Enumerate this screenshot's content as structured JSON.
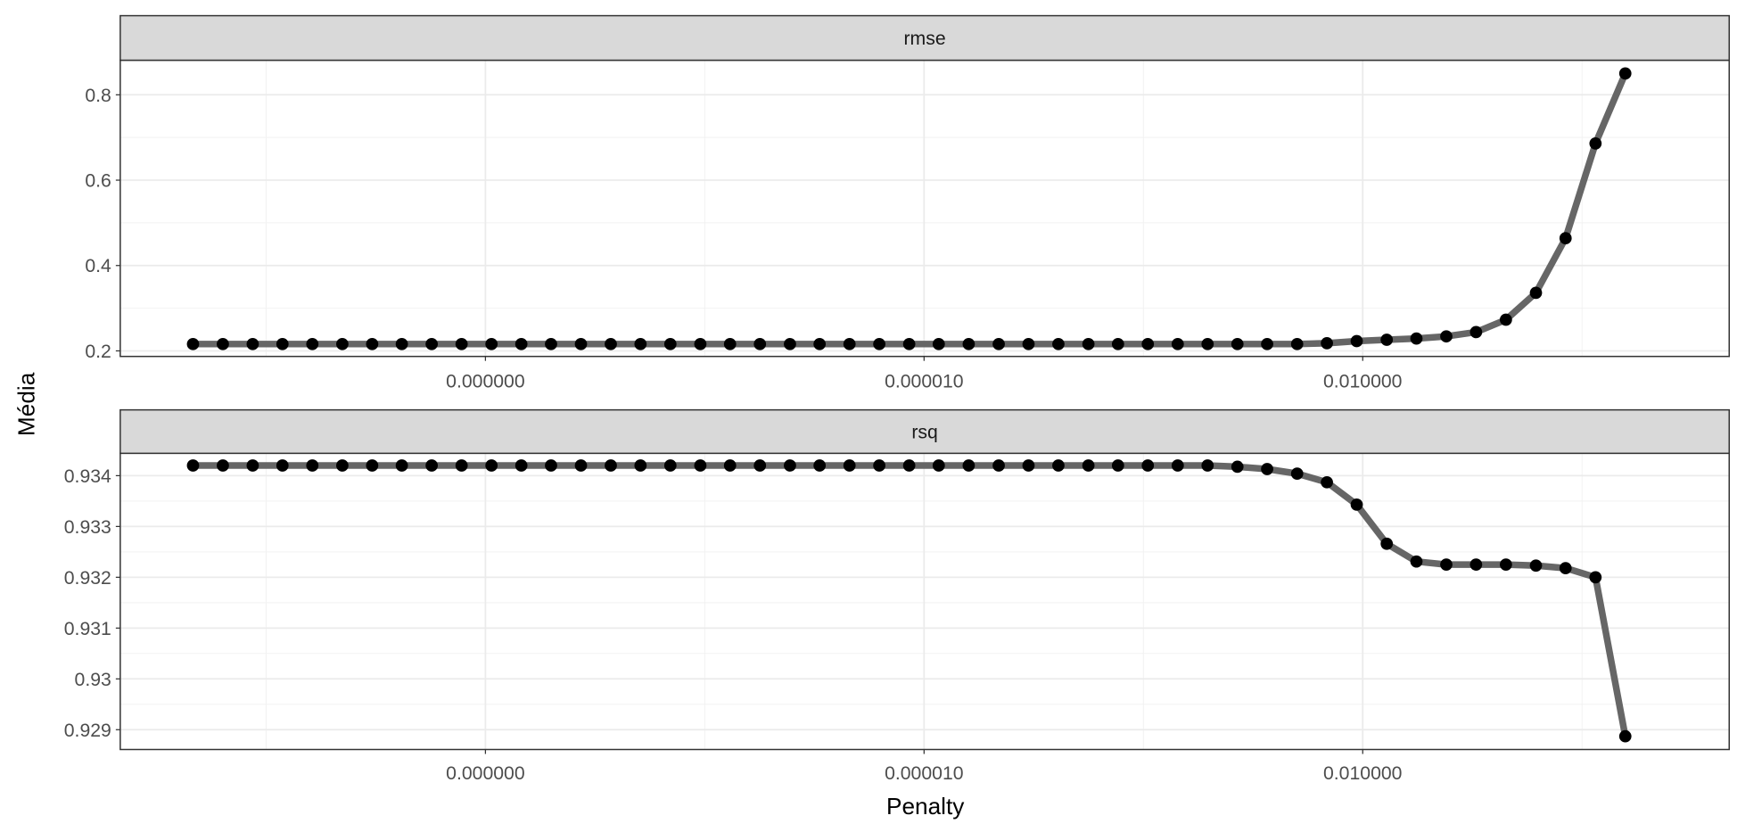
{
  "axis_labels": {
    "x": "Penalty",
    "y": "Média"
  },
  "chart_data": [
    {
      "type": "line",
      "strip": "rmse",
      "log_x": true,
      "grid": true,
      "line_color": "#666666",
      "point_color": "#000000",
      "x": [
        1e-10,
        1.6e-10,
        2.56e-10,
        4.09e-10,
        6.55e-10,
        1.05e-09,
        1.68e-09,
        2.68e-09,
        4.29e-09,
        6.87e-09,
        1.1e-08,
        1.76e-08,
        2.81e-08,
        4.5e-08,
        7.2e-08,
        1.15e-07,
        1.84e-07,
        2.95e-07,
        4.71e-07,
        7.54e-07,
        1.21e-06,
        1.93e-06,
        3.09e-06,
        4.94e-06,
        7.91e-06,
        1.26e-05,
        2.02e-05,
        3.24e-05,
        5.18e-05,
        8.29e-05,
        0.000133,
        0.000212,
        0.000339,
        0.000543,
        0.000869,
        0.00139,
        0.00222,
        0.00356,
        0.00569,
        0.0091,
        0.0146,
        0.0233,
        0.0373,
        0.0596,
        0.0954,
        0.153,
        0.244,
        0.391,
        0.625
      ],
      "values": [
        0.216,
        0.216,
        0.216,
        0.216,
        0.216,
        0.216,
        0.216,
        0.216,
        0.216,
        0.216,
        0.216,
        0.216,
        0.216,
        0.216,
        0.216,
        0.216,
        0.216,
        0.216,
        0.216,
        0.216,
        0.216,
        0.216,
        0.216,
        0.216,
        0.216,
        0.216,
        0.216,
        0.216,
        0.216,
        0.216,
        0.216,
        0.216,
        0.216,
        0.216,
        0.216,
        0.216,
        0.216,
        0.216,
        0.218,
        0.223,
        0.226,
        0.229,
        0.234,
        0.244,
        0.273,
        0.336,
        0.464,
        0.686,
        0.85
      ],
      "xlim": [
        3.18e-11,
        3.21
      ],
      "xticks": [
        {
          "value": 1e-08,
          "label": "0.000000"
        },
        {
          "value": 1e-05,
          "label": "0.000010"
        },
        {
          "value": 0.01,
          "label": "0.010000"
        }
      ],
      "ylim": [
        0.187,
        0.881
      ],
      "yticks": [
        0.2,
        0.4,
        0.6,
        0.8
      ]
    },
    {
      "type": "line",
      "strip": "rsq",
      "log_x": true,
      "grid": true,
      "line_color": "#666666",
      "point_color": "#000000",
      "x": [
        1e-10,
        1.6e-10,
        2.56e-10,
        4.09e-10,
        6.55e-10,
        1.05e-09,
        1.68e-09,
        2.68e-09,
        4.29e-09,
        6.87e-09,
        1.1e-08,
        1.76e-08,
        2.81e-08,
        4.5e-08,
        7.2e-08,
        1.15e-07,
        1.84e-07,
        2.95e-07,
        4.71e-07,
        7.54e-07,
        1.21e-06,
        1.93e-06,
        3.09e-06,
        4.94e-06,
        7.91e-06,
        1.26e-05,
        2.02e-05,
        3.24e-05,
        5.18e-05,
        8.29e-05,
        0.000133,
        0.000212,
        0.000339,
        0.000543,
        0.000869,
        0.00139,
        0.00222,
        0.00356,
        0.00569,
        0.0091,
        0.0146,
        0.0233,
        0.0373,
        0.0596,
        0.0954,
        0.153,
        0.244,
        0.391,
        0.625
      ],
      "values": [
        0.9342,
        0.9342,
        0.9342,
        0.9342,
        0.9342,
        0.9342,
        0.9342,
        0.9342,
        0.9342,
        0.9342,
        0.9342,
        0.9342,
        0.9342,
        0.9342,
        0.9342,
        0.9342,
        0.9342,
        0.9342,
        0.9342,
        0.9342,
        0.9342,
        0.9342,
        0.9342,
        0.9342,
        0.9342,
        0.9342,
        0.9342,
        0.9342,
        0.9342,
        0.9342,
        0.9342,
        0.9342,
        0.9342,
        0.9342,
        0.9342,
        0.934175,
        0.93413,
        0.93404,
        0.93387,
        0.93343,
        0.93266,
        0.93231,
        0.93225,
        0.93225,
        0.93225,
        0.93223,
        0.93218,
        0.932,
        0.92887
      ],
      "xlim": [
        3.18e-11,
        3.21
      ],
      "xticks": [
        {
          "value": 1e-08,
          "label": "0.000000"
        },
        {
          "value": 1e-05,
          "label": "0.000010"
        },
        {
          "value": 0.01,
          "label": "0.010000"
        }
      ],
      "ylim": [
        0.92861,
        0.93444
      ],
      "yticks": [
        0.929,
        0.93,
        0.931,
        0.932,
        0.933,
        0.934
      ]
    }
  ]
}
